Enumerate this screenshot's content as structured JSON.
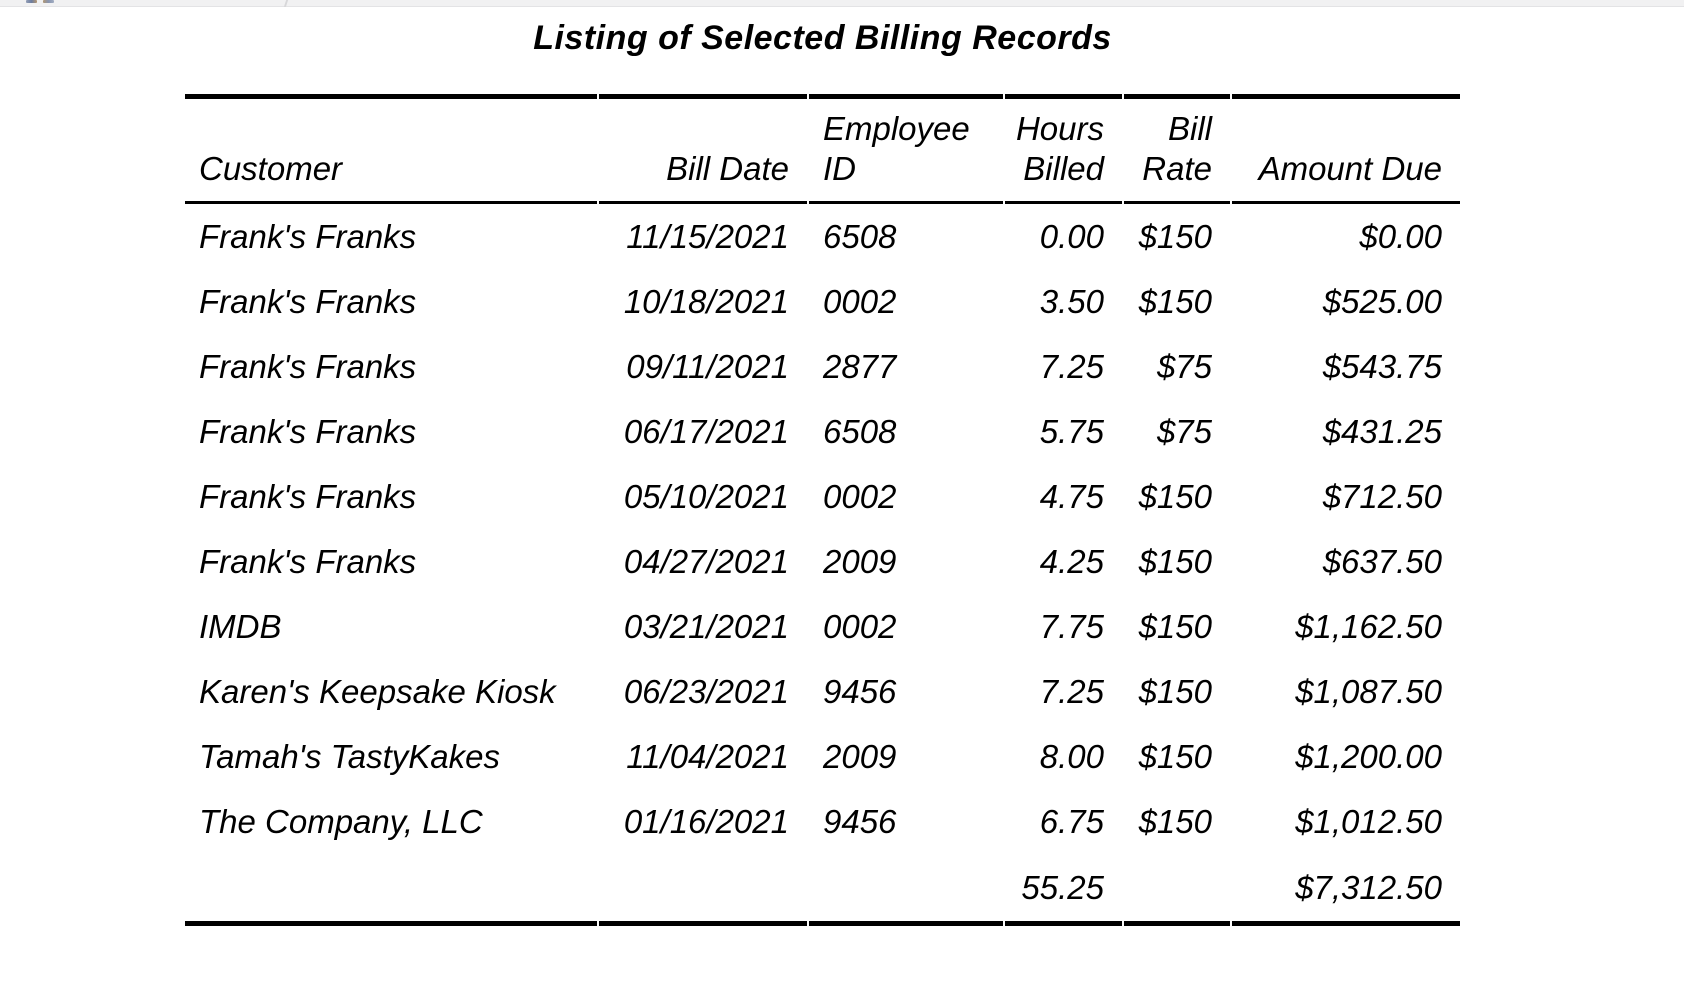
{
  "title": "Listing of Selected Billing Records",
  "table": {
    "columns": [
      {
        "key": "customer",
        "label": "Customer",
        "align": "left"
      },
      {
        "key": "bill_date",
        "label": "Bill Date",
        "align": "right"
      },
      {
        "key": "employee_id",
        "label": "Employee\nID",
        "align": "left"
      },
      {
        "key": "hours_billed",
        "label": "Hours\nBilled",
        "align": "right"
      },
      {
        "key": "bill_rate",
        "label": "Bill\nRate",
        "align": "right"
      },
      {
        "key": "amount_due",
        "label": "Amount Due",
        "align": "right"
      }
    ],
    "rows": [
      [
        "Frank's Franks",
        "11/15/2021",
        "6508",
        "0.00",
        "$150",
        "$0.00"
      ],
      [
        "Frank's Franks",
        "10/18/2021",
        "0002",
        "3.50",
        "$150",
        "$525.00"
      ],
      [
        "Frank's Franks",
        "09/11/2021",
        "2877",
        "7.25",
        "$75",
        "$543.75"
      ],
      [
        "Frank's Franks",
        "06/17/2021",
        "6508",
        "5.75",
        "$75",
        "$431.25"
      ],
      [
        "Frank's Franks",
        "05/10/2021",
        "0002",
        "4.75",
        "$150",
        "$712.50"
      ],
      [
        "Frank's Franks",
        "04/27/2021",
        "2009",
        "4.25",
        "$150",
        "$637.50"
      ],
      [
        "IMDB",
        "03/21/2021",
        "0002",
        "7.75",
        "$150",
        "$1,162.50"
      ],
      [
        "Karen's Keepsake Kiosk",
        "06/23/2021",
        "9456",
        "7.25",
        "$150",
        "$1,087.50"
      ],
      [
        "Tamah's TastyKakes",
        "11/04/2021",
        "2009",
        "8.00",
        "$150",
        "$1,200.00"
      ],
      [
        "The Company, LLC",
        "01/16/2021",
        "9456",
        "6.75",
        "$150",
        "$1,012.50"
      ]
    ],
    "totals": {
      "hours_billed": "55.25",
      "amount_due": "$7,312.50"
    }
  },
  "colors": {
    "text": "#000000",
    "rule": "#000000",
    "background": "#ffffff",
    "chrome_strip": "#f1f1f2"
  }
}
